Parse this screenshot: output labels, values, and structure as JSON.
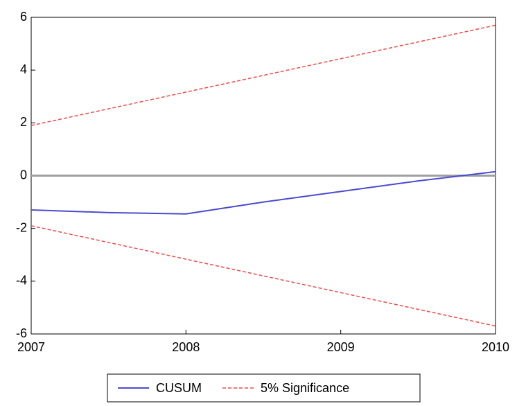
{
  "chart_data": {
    "type": "line",
    "series": [
      {
        "name": "CUSUM",
        "color": "#4a4ad0",
        "dash": false,
        "x": [
          2007,
          2007.5,
          2008,
          2008.5,
          2009,
          2009.5,
          2010
        ],
        "values": [
          -1.3,
          -1.4,
          -1.45,
          -1.0,
          -0.6,
          -0.2,
          0.15
        ]
      },
      {
        "name": "5% Significance",
        "color": "#f04848",
        "dash": true,
        "x": [
          2007,
          2010
        ],
        "values": [
          1.9,
          5.7
        ]
      },
      {
        "color": "#f04848",
        "dash": true,
        "x": [
          2007,
          2010
        ],
        "values": [
          -1.9,
          -5.7
        ]
      }
    ],
    "xlim": [
      2007,
      2010
    ],
    "xticks": [
      2007,
      2008,
      2009,
      2010
    ],
    "ylim": [
      -6,
      6
    ],
    "yticks": [
      6,
      4,
      2,
      0,
      -2,
      -4,
      -6
    ],
    "hline": 0,
    "legend": "bottom"
  }
}
